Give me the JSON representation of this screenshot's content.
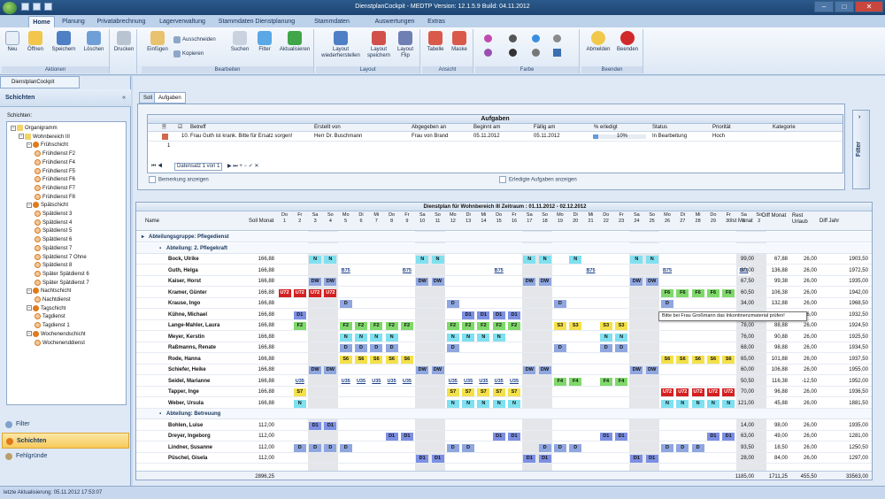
{
  "window": {
    "title": "DienstplanCockpit - MEDTP Version: 12.1.5.9 Build: 04.11.2012"
  },
  "tabs": [
    "Home",
    "Planung",
    "Privatabrechnung",
    "Lagerverwaltung",
    "Stammdaten Dienstplanung",
    "Stammdaten allgemein",
    "Auswertungen",
    "Extras"
  ],
  "ribbon": {
    "groups": [
      "Aktionen",
      "Bearbeiten",
      "Layout",
      "Ansicht",
      "Farbe",
      "Beenden"
    ],
    "buttons": [
      "Neu",
      "Öffnen",
      "Speichern",
      "Löschen",
      "Drucken",
      "Einfügen",
      "Ausschneiden",
      "Kopieren",
      "Suchen",
      "Filter",
      "Aktualisieren",
      "Layout wiederherstellen",
      "Layout speichern",
      "Layout Flip",
      "Tabelle",
      "Maske",
      "Abmelden",
      "Beenden"
    ]
  },
  "doc_tab": "DienstplanCockpit",
  "left": {
    "header": "Schichten",
    "tree_label": "Schichten:",
    "tree": [
      {
        "label": "Organigramm",
        "level": 0,
        "kind": "org"
      },
      {
        "label": "Wohnbereich III",
        "level": 1,
        "kind": "org"
      },
      {
        "label": "Frühschicht",
        "level": 2,
        "kind": "grp"
      },
      {
        "label": "Frühdienst F2",
        "level": 3,
        "kind": "leaf"
      },
      {
        "label": "Frühdienst F4",
        "level": 3,
        "kind": "leaf"
      },
      {
        "label": "Frühdienst F5",
        "level": 3,
        "kind": "leaf"
      },
      {
        "label": "Frühdienst F6",
        "level": 3,
        "kind": "leaf"
      },
      {
        "label": "Frühdienst F7",
        "level": 3,
        "kind": "leaf"
      },
      {
        "label": "Frühdienst F8",
        "level": 3,
        "kind": "leaf"
      },
      {
        "label": "Spätschicht",
        "level": 2,
        "kind": "grp"
      },
      {
        "label": "Spätdienst 3",
        "level": 3,
        "kind": "leaf"
      },
      {
        "label": "Spätdienst 4",
        "level": 3,
        "kind": "leaf"
      },
      {
        "label": "Spätdienst 5",
        "level": 3,
        "kind": "leaf"
      },
      {
        "label": "Spätdienst 6",
        "level": 3,
        "kind": "leaf"
      },
      {
        "label": "Spätdienst 7",
        "level": 3,
        "kind": "leaf"
      },
      {
        "label": "Spätdienst 7 Ohne",
        "level": 3,
        "kind": "leaf"
      },
      {
        "label": "Spätdienst 8",
        "level": 3,
        "kind": "leaf"
      },
      {
        "label": "Später Spätdienst 6",
        "level": 3,
        "kind": "leaf"
      },
      {
        "label": "Später Spätdienst 7",
        "level": 3,
        "kind": "leaf"
      },
      {
        "label": "Nachtschicht",
        "level": 2,
        "kind": "grp"
      },
      {
        "label": "Nachtdienst",
        "level": 3,
        "kind": "leaf"
      },
      {
        "label": "Tagschicht",
        "level": 2,
        "kind": "grp"
      },
      {
        "label": "Tagdienst",
        "level": 3,
        "kind": "leaf"
      },
      {
        "label": "Tagdienst 1",
        "level": 3,
        "kind": "leaf"
      },
      {
        "label": "Wochenendschicht",
        "level": 2,
        "kind": "grp"
      },
      {
        "label": "Wochenenddienst",
        "level": 3,
        "kind": "leaf"
      }
    ],
    "nav": [
      "Filter",
      "Schichten",
      "Fehlgründe"
    ]
  },
  "subtabs": [
    "Soll",
    "Aufgaben"
  ],
  "aufgaben": {
    "title": "Aufgaben",
    "columns": [
      "Betreff",
      "Erstellt von",
      "Abgegeben an",
      "Beginnt am",
      "Fällig am",
      "% erledigt",
      "Status",
      "Priorität",
      "Kategorie"
    ],
    "row": {
      "betreff": "10. Frau Guth ist krank. Bitte für Ersatz sorgen!",
      "erstellt": "Herr Dr. Buschmann",
      "abgegeben": "Frau von Brand",
      "beginn": "05.11.2012",
      "faellig": "05.11.2012",
      "erledigt": "10%",
      "erledigt_fraction": 0.1,
      "status": "In Bearbeitung",
      "prio": "Hoch"
    },
    "newrow_num": "1",
    "pager": "Datensatz 1 von 1",
    "check1": "Bemerkung anzeigen",
    "check2": "Erledigte Aufgaben anzeigen",
    "filter": "Filter"
  },
  "plan": {
    "title": "Dienstplan für Wohnbereich III Zeitraum : 01.11.2012 - 02.12.2012",
    "col_name": "Name",
    "col_soll": "Soll Monat",
    "days": [
      [
        "Do",
        "1"
      ],
      [
        "Fr",
        "2"
      ],
      [
        "Sa",
        "3"
      ],
      [
        "So",
        "4"
      ],
      [
        "Mo",
        "5"
      ],
      [
        "Di",
        "6"
      ],
      [
        "Mi",
        "7"
      ],
      [
        "Do",
        "8"
      ],
      [
        "Fr",
        "9"
      ],
      [
        "Sa",
        "10"
      ],
      [
        "So",
        "11"
      ],
      [
        "Mo",
        "12"
      ],
      [
        "Di",
        "13"
      ],
      [
        "Mi",
        "14"
      ],
      [
        "Do",
        "15"
      ],
      [
        "Fr",
        "16"
      ],
      [
        "Sa",
        "17"
      ],
      [
        "So",
        "18"
      ],
      [
        "Mo",
        "19"
      ],
      [
        "Di",
        "20"
      ],
      [
        "Mi",
        "21"
      ],
      [
        "Do",
        "22"
      ],
      [
        "Fr",
        "23"
      ],
      [
        "Sa",
        "24"
      ],
      [
        "So",
        "25"
      ],
      [
        "Mo",
        "26"
      ],
      [
        "Di",
        "27"
      ],
      [
        "Mi",
        "28"
      ],
      [
        "Do",
        "29"
      ],
      [
        "Fr",
        "30"
      ],
      [
        "Sa",
        "1"
      ],
      [
        "So",
        "2"
      ]
    ],
    "sum_cols": [
      "Ist Monat",
      "Diff Monat",
      "Rest Urlaub",
      "Diff Jahr"
    ],
    "group1": "Abteilungsgruppe: Pflegedienst",
    "dept1": "Abteilung: 2. Pflegekraft",
    "dept2": "Abteilung: Betreuung",
    "rows1": [
      {
        "name": "Bock, Ulrike",
        "soll": "166,88",
        "s": {
          "3": "N",
          "4": "N",
          "10": "N",
          "11": "N",
          "17": "N",
          "18": "N",
          "20": "N",
          "24": "N",
          "25": "N"
        },
        "ist": "99,00",
        "dm": "67,88",
        "ru": "26,00",
        "dj": "1903,50"
      },
      {
        "name": "Guth, Helga",
        "soll": "166,88",
        "s": {
          "5": "B75",
          "9": "B75",
          "15": "B75",
          "21": "B75",
          "26": "B75",
          "31": "B75"
        },
        "ist": "30,00",
        "dm": "136,88",
        "ru": "26,00",
        "dj": "1972,50"
      },
      {
        "name": "Kaiser, Horst",
        "soll": "166,88",
        "s": {
          "3": "DW",
          "4": "DW",
          "10": "DW",
          "11": "DW",
          "17": "DW",
          "18": "DW",
          "24": "DW",
          "25": "DW"
        },
        "ist": "67,50",
        "dm": "99,38",
        "ru": "26,00",
        "dj": "1935,00"
      },
      {
        "name": "Kramer, Günter",
        "soll": "166,88",
        "s": {
          "1": "U72",
          "2": "U72",
          "3": "U72",
          "4": "U72",
          "26": "F6",
          "27": "F6",
          "28": "F6",
          "29": "F6",
          "30": "F6"
        },
        "ist": "60,50",
        "dm": "106,38",
        "ru": "26,00",
        "dj": "1942,00"
      },
      {
        "name": "Krause, Ingo",
        "soll": "166,88",
        "s": {
          "5": "D",
          "12": "D",
          "19": "D",
          "26": "D"
        },
        "ist": "34,00",
        "dm": "132,88",
        "ru": "26,00",
        "dj": "1968,50"
      },
      {
        "name": "Kühne, Michael",
        "soll": "166,88",
        "s": {
          "2": "D1",
          "13": "D1",
          "14": "D1",
          "15": "D1",
          "16": "D1",
          "26": "D1",
          "27": "D1"
        },
        "ist": "",
        "dm": "",
        "ru": "26,00",
        "dj": "1932,50"
      },
      {
        "name": "Lange-Mahler, Laura",
        "soll": "166,88",
        "s": {
          "2": "F2",
          "5": "F2",
          "6": "F2",
          "7": "F2",
          "8": "F2",
          "9": "F2",
          "12": "F2",
          "13": "F2",
          "14": "F2",
          "15": "F2",
          "16": "F2",
          "19": "S3",
          "20": "S3",
          "22": "S3",
          "23": "S3"
        },
        "ist": "78,00",
        "dm": "88,88",
        "ru": "26,00",
        "dj": "1924,50"
      },
      {
        "name": "Meyer, Kerstin",
        "soll": "166,88",
        "s": {
          "5": "N",
          "6": "N",
          "7": "N",
          "8": "N",
          "12": "N",
          "13": "N",
          "14": "N",
          "15": "N",
          "22": "N",
          "23": "N"
        },
        "ist": "76,00",
        "dm": "90,88",
        "ru": "26,00",
        "dj": "1925,50"
      },
      {
        "name": "Raßmanns, Renate",
        "soll": "166,88",
        "s": {
          "5": "D",
          "6": "D",
          "7": "D",
          "8": "D",
          "12": "D",
          "19": "D",
          "22": "D",
          "23": "D"
        },
        "ist": "68,00",
        "dm": "98,88",
        "ru": "26,00",
        "dj": "1934,50"
      },
      {
        "name": "Rode, Hanna",
        "soll": "166,88",
        "s": {
          "5": "S6",
          "6": "S6",
          "7": "S6",
          "8": "S6",
          "9": "S6",
          "26": "S6",
          "27": "S6",
          "28": "S6",
          "29": "S6",
          "30": "S6"
        },
        "ist": "65,00",
        "dm": "101,88",
        "ru": "26,00",
        "dj": "1937,50"
      },
      {
        "name": "Schiefer, Heike",
        "soll": "166,88",
        "s": {
          "3": "DW",
          "4": "DW",
          "10": "DW",
          "11": "DW",
          "17": "DW",
          "18": "DW",
          "24": "DW",
          "25": "DW"
        },
        "ist": "60,00",
        "dm": "106,88",
        "ru": "26,00",
        "dj": "1955,00"
      },
      {
        "name": "Seidel, Marianne",
        "soll": "166,88",
        "s": {
          "2": "U35",
          "5": "U35",
          "6": "U35",
          "7": "U35",
          "8": "U35",
          "9": "U35",
          "12": "U35",
          "13": "U35",
          "14": "U35",
          "15": "U35",
          "16": "U35",
          "19": "F4",
          "20": "F4",
          "22": "F4",
          "23": "F4"
        },
        "ist": "50,50",
        "dm": "116,38",
        "ru": "-12,50",
        "dj": "1952,00"
      },
      {
        "name": "Tapper, Inge",
        "soll": "166,88",
        "s": {
          "2": "S7",
          "12": "S7",
          "13": "S7",
          "14": "S7",
          "15": "S7",
          "16": "S7",
          "26": "U72",
          "27": "U72",
          "28": "U72",
          "29": "U72",
          "30": "U72"
        },
        "ist": "70,00",
        "dm": "96,88",
        "ru": "26,00",
        "dj": "1936,50"
      },
      {
        "name": "Weber, Ursula",
        "soll": "166,88",
        "s": {
          "2": "N",
          "12": "N",
          "13": "N",
          "14": "N",
          "15": "N",
          "16": "N",
          "26": "N",
          "27": "N",
          "28": "N",
          "29": "N",
          "30": "N"
        },
        "ist": "121,00",
        "dm": "45,88",
        "ru": "26,00",
        "dj": "1881,50"
      }
    ],
    "rows2": [
      {
        "name": "Bohlen, Luise",
        "soll": "112,00",
        "s": {
          "3": "D1",
          "4": "D1"
        },
        "ist": "14,00",
        "dm": "98,00",
        "ru": "26,00",
        "dj": "1935,00"
      },
      {
        "name": "Dreyer, Ingeborg",
        "soll": "112,00",
        "s": {
          "8": "D1",
          "9": "D1",
          "15": "D1",
          "16": "D1",
          "22": "D1",
          "23": "D1",
          "29": "D1",
          "30": "D1"
        },
        "ist": "63,00",
        "dm": "49,00",
        "ru": "26,00",
        "dj": "1281,00"
      },
      {
        "name": "Lindner, Susanne",
        "soll": "112,00",
        "s": {
          "2": "D",
          "3": "D",
          "4": "D",
          "5": "D",
          "12": "D",
          "13": "D",
          "18": "D",
          "19": "D",
          "20": "D",
          "26": "D",
          "27": "D",
          "28": "D"
        },
        "ist": "93,50",
        "dm": "18,50",
        "ru": "26,00",
        "dj": "1250,50"
      },
      {
        "name": "Püschel, Gisela",
        "soll": "112,00",
        "s": {
          "10": "D1",
          "11": "D1",
          "17": "D1",
          "18": "D1",
          "24": "D1",
          "25": "D1"
        },
        "ist": "28,00",
        "dm": "84,00",
        "ru": "26,00",
        "dj": "1297,00"
      }
    ],
    "tooltip": "Bitte bei Frau Großmann das Inkontinenzmaterial prüfen!",
    "totals": {
      "soll": "2896,25",
      "ist": "1185,00",
      "dm": "1711,25",
      "ru": "455,50",
      "dj": "33563,00"
    }
  },
  "status": "letzte Aktualisierung: 05.11.2012 17:53:07",
  "colors": {
    "N": "#7fe0ef",
    "DW": "#8fa6df",
    "D": "#8fa6df",
    "D1": "#7d8fe3",
    "F2": "#7fd86a",
    "F4": "#7fd86a",
    "F6": "#7fd86a",
    "S3": "#f4e04a",
    "S6": "#f4e04a",
    "S7": "#f4e04a",
    "U72": "#d42020",
    "U35": "#ffffff",
    "B75": "#ffffff"
  }
}
